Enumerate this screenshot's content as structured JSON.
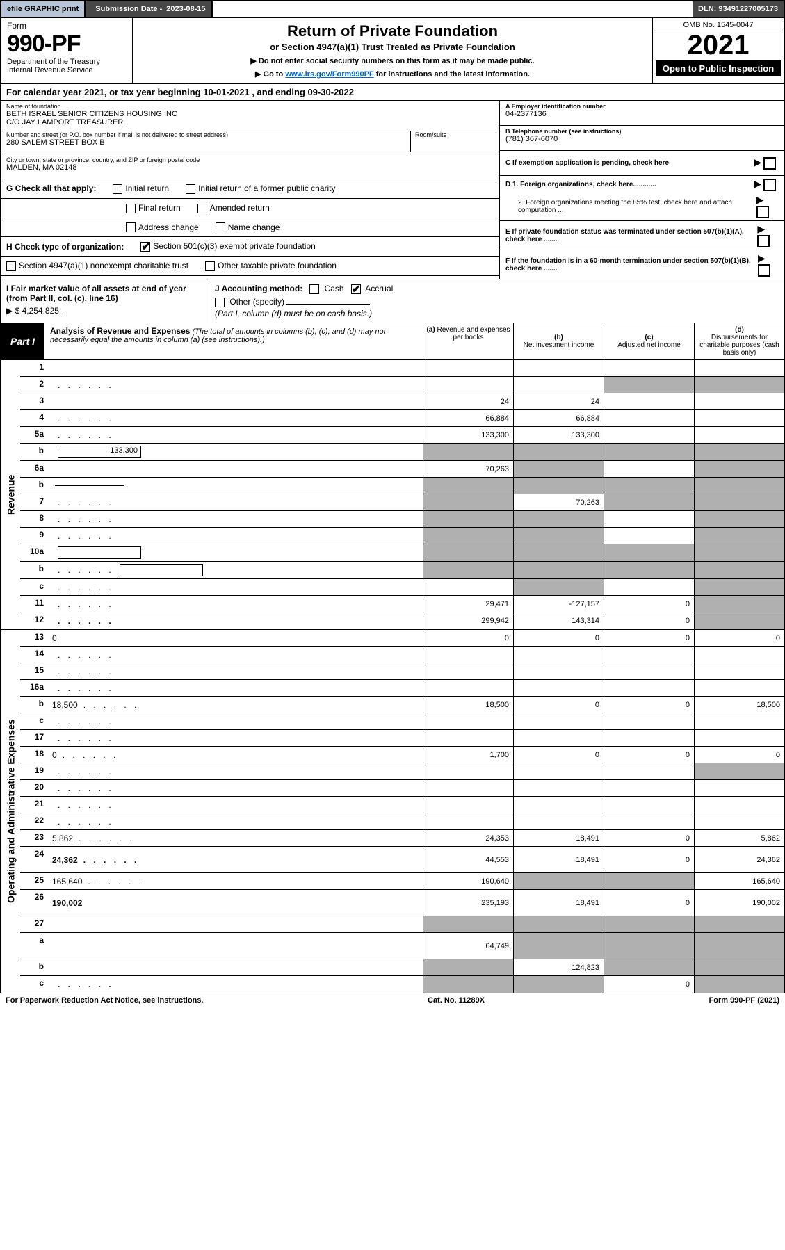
{
  "topbar": {
    "efile": "efile GRAPHIC print",
    "sub_label": "Submission Date - ",
    "sub_date": "2023-08-15",
    "dln": "DLN: 93491227005173"
  },
  "header": {
    "form_word": "Form",
    "form_num": "990-PF",
    "dept": "Department of the Treasury",
    "irs": "Internal Revenue Service",
    "title": "Return of Private Foundation",
    "subtitle": "or Section 4947(a)(1) Trust Treated as Private Foundation",
    "note1": "▶ Do not enter social security numbers on this form as it may be made public.",
    "note2_pre": "▶ Go to ",
    "note2_link": "www.irs.gov/Form990PF",
    "note2_post": " for instructions and the latest information.",
    "omb": "OMB No. 1545-0047",
    "year": "2021",
    "open": "Open to Public Inspection"
  },
  "calyear": "For calendar year 2021, or tax year beginning 10-01-2021              , and ending 09-30-2022",
  "leftinfo": {
    "name_lbl": "Name of foundation",
    "name_val1": "BETH ISRAEL SENIOR CITIZENS HOUSING INC",
    "name_val2": "C/O JAY LAMPORT TREASURER",
    "addr_lbl": "Number and street (or P.O. box number if mail is not delivered to street address)",
    "addr_val": "280 SALEM STREET BOX B",
    "room_lbl": "Room/suite",
    "city_lbl": "City or town, state or province, country, and ZIP or foreign postal code",
    "city_val": "MALDEN, MA  02148"
  },
  "rightinfo": {
    "a_lbl": "A Employer identification number",
    "a_val": "04-2377136",
    "b_lbl": "B Telephone number (see instructions)",
    "b_val": "(781) 367-6070",
    "c_lbl": "C If exemption application is pending, check here",
    "d1": "D 1. Foreign organizations, check here............",
    "d2": "2. Foreign organizations meeting the 85% test, check here and attach computation ...",
    "e": "E  If private foundation status was terminated under section 507(b)(1)(A), check here .......",
    "f": "F  If the foundation is in a 60-month termination under section 507(b)(1)(B), check here ......."
  },
  "checks": {
    "g_lbl": "G Check all that apply:",
    "g1": "Initial return",
    "g2": "Initial return of a former public charity",
    "g3": "Final return",
    "g4": "Amended return",
    "g5": "Address change",
    "g6": "Name change",
    "h_lbl": "H Check type of organization:",
    "h1": "Section 501(c)(3) exempt private foundation",
    "h2": "Section 4947(a)(1) nonexempt charitable trust",
    "h3": "Other taxable private foundation",
    "i_lbl": "I Fair market value of all assets at end of year (from Part II, col. (c), line 16)",
    "i_val": "▶ $  4,254,825",
    "j_lbl": "J Accounting method:",
    "j1": "Cash",
    "j2": "Accrual",
    "j3": "Other (specify)",
    "j_note": "(Part I, column (d) must be on cash basis.)"
  },
  "part1": {
    "tag": "Part I",
    "title": "Analysis of Revenue and Expenses",
    "title_note": " (The total of amounts in columns (b), (c), and (d) may not necessarily equal the amounts in column (a) (see instructions).)",
    "col_a": "Revenue and expenses per books",
    "col_b": "Net investment income",
    "col_c": "Adjusted net income",
    "col_d": "Disbursements for charitable purposes (cash basis only)",
    "col_a_pre": "(a)",
    "col_b_pre": "(b)",
    "col_c_pre": "(c)",
    "col_d_pre": "(d)"
  },
  "side": {
    "revenue": "Revenue",
    "expenses": "Operating and Administrative Expenses"
  },
  "rows": [
    {
      "n": "1",
      "d": "",
      "a": "",
      "b": "",
      "c": ""
    },
    {
      "n": "2",
      "d": "",
      "dots": true,
      "a": "",
      "b": "",
      "c": "",
      "greyC": true,
      "greyD": true,
      "boldnot": true
    },
    {
      "n": "3",
      "d": "",
      "a": "24",
      "b": "24",
      "c": ""
    },
    {
      "n": "4",
      "d": "",
      "dots": true,
      "a": "66,884",
      "b": "66,884",
      "c": ""
    },
    {
      "n": "5a",
      "d": "",
      "dots": true,
      "a": "133,300",
      "b": "133,300",
      "c": ""
    },
    {
      "n": "b",
      "d": "",
      "box": "133,300",
      "a": "",
      "b": "",
      "c": "",
      "greyA": true,
      "greyB": true,
      "greyC": true,
      "greyD": true
    },
    {
      "n": "6a",
      "d": "",
      "a": "70,263",
      "b": "",
      "c": "",
      "greyB": true,
      "greyD": true
    },
    {
      "n": "b",
      "d": "",
      "ul": true,
      "a": "",
      "b": "",
      "c": "",
      "greyA": true,
      "greyB": true,
      "greyC": true,
      "greyD": true
    },
    {
      "n": "7",
      "d": "",
      "dots": true,
      "a": "",
      "b": "70,263",
      "c": "",
      "greyA": true,
      "greyC": true,
      "greyD": true
    },
    {
      "n": "8",
      "d": "",
      "dots": true,
      "a": "",
      "b": "",
      "c": "",
      "greyA": true,
      "greyB": true,
      "greyD": true
    },
    {
      "n": "9",
      "d": "",
      "dots": true,
      "a": "",
      "b": "",
      "c": "",
      "greyA": true,
      "greyB": true,
      "greyD": true
    },
    {
      "n": "10a",
      "d": "",
      "box": "",
      "a": "",
      "b": "",
      "c": "",
      "greyA": true,
      "greyB": true,
      "greyC": true,
      "greyD": true
    },
    {
      "n": "b",
      "d": "",
      "dots": true,
      "box": "",
      "a": "",
      "b": "",
      "c": "",
      "greyA": true,
      "greyB": true,
      "greyC": true,
      "greyD": true
    },
    {
      "n": "c",
      "d": "",
      "dots": true,
      "a": "",
      "b": "",
      "c": "",
      "greyB": true,
      "greyD": true
    },
    {
      "n": "11",
      "d": "",
      "dots": true,
      "a": "29,471",
      "b": "-127,157",
      "c": "0",
      "greyD": true
    },
    {
      "n": "12",
      "d": "",
      "dots": true,
      "bold": true,
      "a": "299,942",
      "b": "143,314",
      "c": "0",
      "greyD": true
    }
  ],
  "exprows": [
    {
      "n": "13",
      "d": "0",
      "a": "0",
      "b": "0",
      "c": "0"
    },
    {
      "n": "14",
      "d": "",
      "dots": true,
      "a": "",
      "b": "",
      "c": ""
    },
    {
      "n": "15",
      "d": "",
      "dots": true,
      "a": "",
      "b": "",
      "c": ""
    },
    {
      "n": "16a",
      "d": "",
      "dots": true,
      "a": "",
      "b": "",
      "c": ""
    },
    {
      "n": "b",
      "d": "18,500",
      "dots": true,
      "a": "18,500",
      "b": "0",
      "c": "0"
    },
    {
      "n": "c",
      "d": "",
      "dots": true,
      "a": "",
      "b": "",
      "c": ""
    },
    {
      "n": "17",
      "d": "",
      "dots": true,
      "a": "",
      "b": "",
      "c": ""
    },
    {
      "n": "18",
      "d": "0",
      "dots": true,
      "a": "1,700",
      "b": "0",
      "c": "0"
    },
    {
      "n": "19",
      "d": "",
      "dots": true,
      "a": "",
      "b": "",
      "c": "",
      "greyD": true
    },
    {
      "n": "20",
      "d": "",
      "dots": true,
      "a": "",
      "b": "",
      "c": ""
    },
    {
      "n": "21",
      "d": "",
      "dots": true,
      "a": "",
      "b": "",
      "c": ""
    },
    {
      "n": "22",
      "d": "",
      "dots": true,
      "a": "",
      "b": "",
      "c": ""
    },
    {
      "n": "23",
      "d": "5,862",
      "dots": true,
      "a": "24,353",
      "b": "18,491",
      "c": "0"
    },
    {
      "n": "24",
      "d": "24,362",
      "dots": true,
      "bold": true,
      "a": "44,553",
      "b": "18,491",
      "c": "0",
      "twoline": true
    },
    {
      "n": "25",
      "d": "165,640",
      "dots": true,
      "a": "190,640",
      "b": "",
      "c": "",
      "greyB": true,
      "greyC": true
    },
    {
      "n": "26",
      "d": "190,002",
      "bold": true,
      "a": "235,193",
      "b": "18,491",
      "c": "0",
      "twoline": true
    },
    {
      "n": "27",
      "d": "",
      "a": "",
      "b": "",
      "c": "",
      "greyA": true,
      "greyB": true,
      "greyC": true,
      "greyD": true
    },
    {
      "n": "a",
      "d": "",
      "bold": true,
      "a": "64,749",
      "b": "",
      "c": "",
      "greyB": true,
      "greyC": true,
      "greyD": true,
      "twoline": true
    },
    {
      "n": "b",
      "d": "",
      "bold": true,
      "a": "",
      "b": "124,823",
      "c": "",
      "greyA": true,
      "greyC": true,
      "greyD": true
    },
    {
      "n": "c",
      "d": "",
      "dots": true,
      "bold": true,
      "a": "",
      "b": "",
      "c": "0",
      "greyA": true,
      "greyB": true,
      "greyD": true
    }
  ],
  "footer": {
    "left": "For Paperwork Reduction Act Notice, see instructions.",
    "mid": "Cat. No. 11289X",
    "right": "Form 990-PF (2021)"
  },
  "colors": {
    "grey_cell": "#b0b0b0",
    "topbar_grey": "#b8c5d6",
    "topbar_dark": "#474747",
    "link": "#0066cc"
  }
}
